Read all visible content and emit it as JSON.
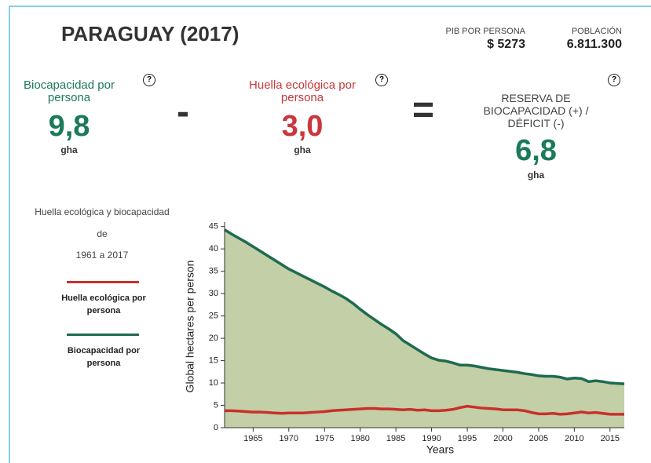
{
  "header": {
    "title": "PARAGUAY (2017)",
    "gdp_label": "PIB POR PERSONA",
    "gdp_value": "$ 5273",
    "population_label": "POBLACIÓN",
    "population_value": "6.811.300"
  },
  "help_icon": "?",
  "stats": {
    "biocapacity": {
      "label": "Biocapacidad por persona",
      "value": "9,8",
      "unit": "gha"
    },
    "minus": "-",
    "footprint": {
      "label": "Huella ecológica por persona",
      "value": "3,0",
      "unit": "gha"
    },
    "equals": "=",
    "reserve": {
      "label": "RESERVA DE BIOCAPACIDAD (+) / DÉFICIT (-)",
      "value": "6,8",
      "unit": "gha"
    }
  },
  "side": {
    "line1": "Huella ecológica y biocapacidad",
    "line2": "de",
    "line3": "1961 a 2017"
  },
  "chart_data": {
    "type": "area-line",
    "x_label": "Years",
    "y_label": "Global hectares per person",
    "x": [
      1961,
      1962,
      1963,
      1964,
      1965,
      1966,
      1967,
      1968,
      1969,
      1970,
      1971,
      1972,
      1973,
      1974,
      1975,
      1976,
      1977,
      1978,
      1979,
      1980,
      1981,
      1982,
      1983,
      1984,
      1985,
      1986,
      1987,
      1988,
      1989,
      1990,
      1991,
      1992,
      1993,
      1994,
      1995,
      1996,
      1997,
      1998,
      1999,
      2000,
      2001,
      2002,
      2003,
      2004,
      2005,
      2006,
      2007,
      2008,
      2009,
      2010,
      2011,
      2012,
      2013,
      2014,
      2015,
      2016,
      2017
    ],
    "xlim": [
      1961,
      2017
    ],
    "xticks": [
      1965,
      1970,
      1975,
      1980,
      1985,
      1990,
      1995,
      2000,
      2005,
      2010,
      2015
    ],
    "ylim": [
      0,
      46
    ],
    "yticks": [
      0,
      5,
      10,
      15,
      20,
      25,
      30,
      35,
      40,
      45
    ],
    "area_color": "#c3cfa6",
    "series": [
      {
        "name": "Huella ecológica por persona",
        "color": "#c9302c",
        "values": [
          3.8,
          3.8,
          3.7,
          3.6,
          3.5,
          3.5,
          3.4,
          3.3,
          3.2,
          3.3,
          3.3,
          3.3,
          3.4,
          3.5,
          3.6,
          3.8,
          3.9,
          4.0,
          4.1,
          4.2,
          4.3,
          4.3,
          4.2,
          4.2,
          4.1,
          4.0,
          4.1,
          3.9,
          4.0,
          3.8,
          3.8,
          3.9,
          4.1,
          4.5,
          4.8,
          4.6,
          4.4,
          4.3,
          4.2,
          4.0,
          4.0,
          4.0,
          3.8,
          3.4,
          3.1,
          3.1,
          3.2,
          3.0,
          3.1,
          3.3,
          3.5,
          3.3,
          3.4,
          3.2,
          3.0,
          3.0,
          3.0
        ]
      },
      {
        "name": "Biocapacidad por persona",
        "color": "#1e6b4f",
        "values": [
          44.3,
          43.3,
          42.4,
          41.5,
          40.5,
          39.5,
          38.5,
          37.5,
          36.5,
          35.5,
          34.7,
          33.9,
          33.1,
          32.3,
          31.5,
          30.6,
          29.8,
          28.9,
          27.8,
          26.5,
          25.3,
          24.2,
          23.1,
          22.1,
          21.0,
          19.5,
          18.5,
          17.5,
          16.5,
          15.6,
          15.1,
          14.9,
          14.5,
          14.0,
          14.0,
          13.8,
          13.5,
          13.2,
          13.0,
          12.8,
          12.6,
          12.4,
          12.1,
          11.9,
          11.6,
          11.5,
          11.5,
          11.3,
          10.9,
          11.1,
          11.0,
          10.3,
          10.5,
          10.3,
          10.0,
          9.9,
          9.8
        ]
      }
    ]
  }
}
